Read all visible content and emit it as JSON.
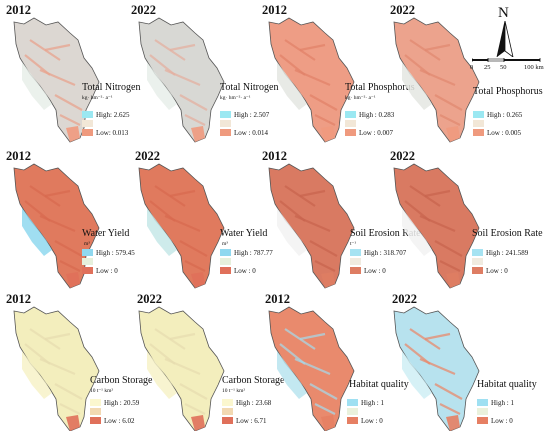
{
  "figure": {
    "north_label": "N",
    "scale": {
      "ticks": [
        "0",
        "25",
        "50",
        "100 km"
      ]
    },
    "panels": [
      {
        "year": "2012",
        "title": "Total Nitrogen",
        "unit": "kg· hm⁻²· a⁻¹",
        "high": "High: 2.625",
        "low": "Low: 0.013",
        "base_color": "#dcd7d2",
        "tint_color": "#e9a48e",
        "edge_color": "#555555",
        "high_color": "#e8eee9",
        "low_color": "#ef9a7e",
        "legend_colors": [
          "#9be8f2",
          "#f2e7d7",
          "#ef9a7e"
        ]
      },
      {
        "year": "2022",
        "title": "Total Nitrogen",
        "unit": "kg· hm⁻²· a⁻¹",
        "high": "High : 2.507",
        "low": "Low : 0.014",
        "base_color": "#d8d8d4",
        "tint_color": "#e4b0a1",
        "edge_color": "#555555",
        "high_color": "#e8efea",
        "low_color": "#ef9a7e",
        "legend_colors": [
          "#9be8f2",
          "#f2e7d7",
          "#ef9a7e"
        ]
      },
      {
        "year": "2012",
        "title": "Total Phosphorus",
        "unit": "kg· hm⁻²· a⁻¹",
        "high": "High : 0.283",
        "low": "Low : 0.007",
        "base_color": "#ee9d85",
        "tint_color": "#e2836a",
        "edge_color": "#555555",
        "high_color": "#e4e6e2",
        "low_color": "#ef9a7e",
        "legend_colors": [
          "#9be8f2",
          "#f2e7d7",
          "#ef9a7e"
        ]
      },
      {
        "year": "2022",
        "title": "Total Phosphorus",
        "unit": "",
        "high": "High : 0.265",
        "low": "Low : 0.005",
        "base_color": "#eca38d",
        "tint_color": "#e28a72",
        "edge_color": "#555555",
        "high_color": "#e4e6e2",
        "low_color": "#ef9a7e",
        "legend_colors": [
          "#9be8f2",
          "#f2e7d7",
          "#ef9a7e"
        ]
      },
      {
        "year": "2012",
        "title": "Water Yield",
        "unit": "m³",
        "high": "High : 579.45",
        "low": "Low : 0",
        "base_color": "#e07a5e",
        "tint_color": "#d96a50",
        "edge_color": "#555555",
        "high_color": "#8fd8ef",
        "low_color": "#e0705a",
        "legend_colors": [
          "#8fd8ef",
          "#e6f0dc",
          "#e0705a"
        ]
      },
      {
        "year": "2022",
        "title": "Water Yield",
        "unit": "m³",
        "high": "High : 787.77",
        "low": "Low : 0",
        "base_color": "#e07a5e",
        "tint_color": "#d96a50",
        "edge_color": "#555555",
        "high_color": "#c6e7e8",
        "low_color": "#e0705a",
        "legend_colors": [
          "#8fd8ef",
          "#e6f0dc",
          "#e0705a"
        ]
      },
      {
        "year": "2012",
        "title": "Soil Erosion Rate",
        "unit": "t⁻¹",
        "high": "High : 318.707",
        "low": "Low : 0",
        "base_color": "#d97a62",
        "tint_color": "#c9654f",
        "edge_color": "#555555",
        "high_color": "#f2f2f2",
        "low_color": "#de7d63",
        "legend_colors": [
          "#a6e3f2",
          "#f0ebe0",
          "#de7d63"
        ]
      },
      {
        "year": "2022",
        "title": "Soil Erosion Rate",
        "unit": "t⁻¹",
        "high": "High : 241.589",
        "low": "Low : 0",
        "base_color": "#d97a62",
        "tint_color": "#c9654f",
        "edge_color": "#555555",
        "high_color": "#f2f2f2",
        "low_color": "#de7d63",
        "legend_colors": [
          "#a6e3f2",
          "#f0ebe0",
          "#de7d63"
        ]
      },
      {
        "year": "2012",
        "title": "Carbon Storage",
        "unit": "10 t⁻¹ km²",
        "high": "High : 20.59",
        "low": "Low : 6.02",
        "base_color": "#f3eebd",
        "tint_color": "#e7ddb0",
        "edge_color": "#555555",
        "high_color": "#f7f2c8",
        "low_color": "#e0705a",
        "legend_colors": [
          "#fbf7cf",
          "#f2d9b2",
          "#e0705a"
        ]
      },
      {
        "year": "2022",
        "title": "Carbon Storage",
        "unit": "10 t⁻¹ km²",
        "high": "High : 23.68",
        "low": "Low : 6.71",
        "base_color": "#f3eebd",
        "tint_color": "#e7ddb0",
        "edge_color": "#555555",
        "high_color": "#f7f2c8",
        "low_color": "#e0705a",
        "legend_colors": [
          "#fbf7cf",
          "#f2d9b2",
          "#e0705a"
        ]
      },
      {
        "year": "2012",
        "title": "Habitat quality",
        "unit": "",
        "high": "High : 1",
        "low": "Low : 0",
        "base_color": "#e98a6d",
        "tint_color": "#a8d6e6",
        "edge_color": "#555555",
        "high_color": "#b9e4ef",
        "low_color": "#e67f63",
        "legend_colors": [
          "#9fe0f2",
          "#eaf1dc",
          "#e67f63"
        ]
      },
      {
        "year": "2022",
        "title": "Habitat quality",
        "unit": "",
        "high": "High : 1",
        "low": "Low : 0",
        "base_color": "#b7e2ee",
        "tint_color": "#e98a6d",
        "edge_color": "#555555",
        "high_color": "#cfeef4",
        "low_color": "#e67f63",
        "legend_colors": [
          "#9fe0f2",
          "#eaf1dc",
          "#e67f63"
        ]
      }
    ]
  }
}
